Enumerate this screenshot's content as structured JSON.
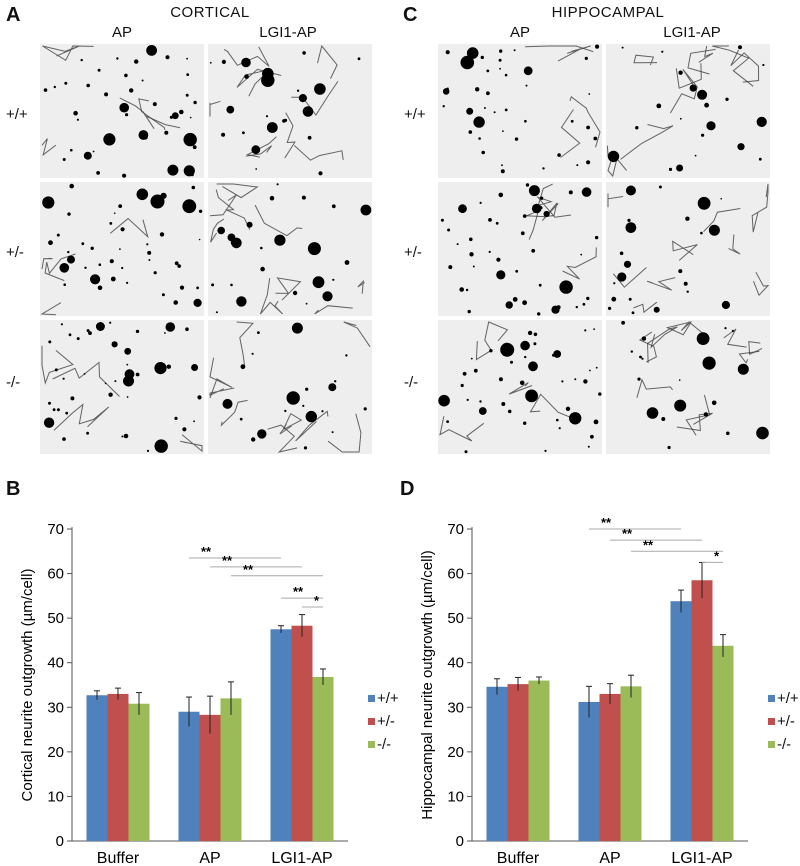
{
  "panels": {
    "A": "A",
    "B": "B",
    "C": "C",
    "D": "D"
  },
  "micrographs": {
    "left_title": "CORTICAL",
    "right_title": "HIPPOCAMPAL",
    "left_columns": [
      "AP",
      "LGI1-AP"
    ],
    "right_columns": [
      "AP",
      "LGI1-AP"
    ],
    "rows": [
      "+/+",
      "+/-",
      "-/-"
    ]
  },
  "chart_data": [
    {
      "type": "bar",
      "categories": [
        "Buffer",
        "AP",
        "LGI1-AP"
      ],
      "ylabel": "Cortical neurite outgrowth (µm/cell)",
      "xlabel": "",
      "ylim": [
        0,
        70
      ],
      "yticks": [
        0,
        10,
        20,
        30,
        40,
        50,
        60,
        70
      ],
      "series": [
        {
          "name": "+/+",
          "color": "#4f81bd",
          "values": [
            32.7,
            29.0,
            47.5
          ],
          "errors": [
            1.0,
            3.3,
            0.8
          ]
        },
        {
          "name": "+/-",
          "color": "#c0504d",
          "values": [
            33.0,
            28.3,
            48.3
          ],
          "errors": [
            1.3,
            4.2,
            2.5
          ]
        },
        {
          "name": "-/-",
          "color": "#9bbb59",
          "values": [
            30.8,
            32.0,
            36.8
          ],
          "errors": [
            2.5,
            3.7,
            1.8
          ]
        }
      ],
      "significance": [
        {
          "label": "**"
        },
        {
          "label": "**"
        },
        {
          "label": "**"
        },
        {
          "label": "**"
        },
        {
          "label": "*"
        }
      ],
      "legend_position": "right"
    },
    {
      "type": "bar",
      "categories": [
        "Buffer",
        "AP",
        "LGI1-AP"
      ],
      "ylabel": "Hippocampal neurite outgrowth (µm/cell)",
      "xlabel": "",
      "ylim": [
        0,
        70
      ],
      "yticks": [
        0,
        10,
        20,
        30,
        40,
        50,
        60,
        70
      ],
      "series": [
        {
          "name": "+/+",
          "color": "#4f81bd",
          "values": [
            34.6,
            31.2,
            53.8
          ],
          "errors": [
            1.8,
            3.5,
            2.5
          ]
        },
        {
          "name": "+/-",
          "color": "#c0504d",
          "values": [
            35.2,
            33.0,
            58.5
          ],
          "errors": [
            1.5,
            2.3,
            4.0
          ]
        },
        {
          "name": "-/-",
          "color": "#9bbb59",
          "values": [
            36.0,
            34.7,
            43.8
          ],
          "errors": [
            0.8,
            2.5,
            2.5
          ]
        }
      ],
      "significance": [
        {
          "label": "**"
        },
        {
          "label": "**"
        },
        {
          "label": "**"
        },
        {
          "label": "*"
        }
      ],
      "legend_position": "right"
    }
  ]
}
